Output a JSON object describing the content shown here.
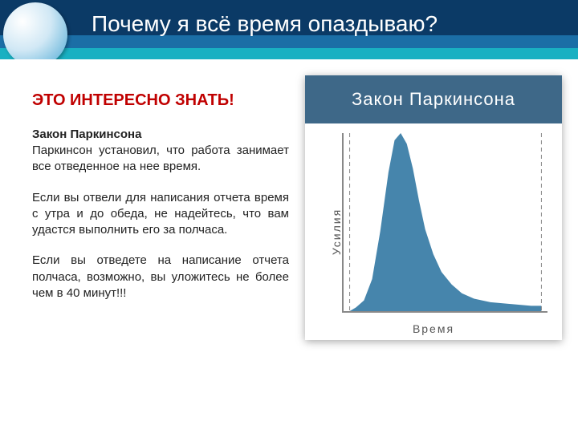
{
  "header": {
    "title": "Почему я всё время опаздываю?",
    "bg_dark": "#0b3a66",
    "bg_mid": "#1b6ea6",
    "bg_highlight": "#19b0c2",
    "title_color": "#ffffff",
    "title_fontsize": 28
  },
  "text": {
    "subtitle": "ЭТО ИНТЕРЕСНО ЗНАТЬ!",
    "subtitle_color": "#c00000",
    "subtitle_fontsize": 20,
    "law_heading": "Закон Паркинсона",
    "para1": "Паркинсон установил, что работа занимает все отведенное на нее время.",
    "para2": "Если вы отвели для написания отчета время с утра и до обеда, не надейтесь, что вам удастся выполнить его за полчаса.",
    "para3": "Если вы отведете на написание отчета полчаса, возможно, вы уложитесь не более чем в 40 минут!!!",
    "body_fontsize": 15,
    "body_color": "#222222"
  },
  "chart": {
    "type": "area",
    "title": "Закон Паркинсона",
    "title_band_color": "#3e6888",
    "title_color": "#ffffff",
    "title_fontsize": 22,
    "x_label": "Время",
    "y_label": "Усилия",
    "axis_label_color": "#555555",
    "axis_label_fontsize": 14,
    "axis_color": "#888888",
    "fill_color": "#3c7ea8",
    "fill_opacity": 0.95,
    "dashed_line_color": "#7a7a7a",
    "dashed_line_dash": "5,4",
    "xlim": [
      0,
      100
    ],
    "ylim": [
      0,
      100
    ],
    "curve": [
      [
        3,
        0
      ],
      [
        6,
        2
      ],
      [
        10,
        6
      ],
      [
        14,
        18
      ],
      [
        18,
        45
      ],
      [
        22,
        78
      ],
      [
        25,
        96
      ],
      [
        28,
        100
      ],
      [
        31,
        94
      ],
      [
        34,
        80
      ],
      [
        37,
        62
      ],
      [
        40,
        46
      ],
      [
        44,
        32
      ],
      [
        48,
        22
      ],
      [
        53,
        15
      ],
      [
        58,
        10
      ],
      [
        64,
        7
      ],
      [
        72,
        5
      ],
      [
        82,
        4
      ],
      [
        92,
        3
      ],
      [
        97,
        3
      ]
    ],
    "deadline_left_x": 3,
    "deadline_right_x": 97
  }
}
